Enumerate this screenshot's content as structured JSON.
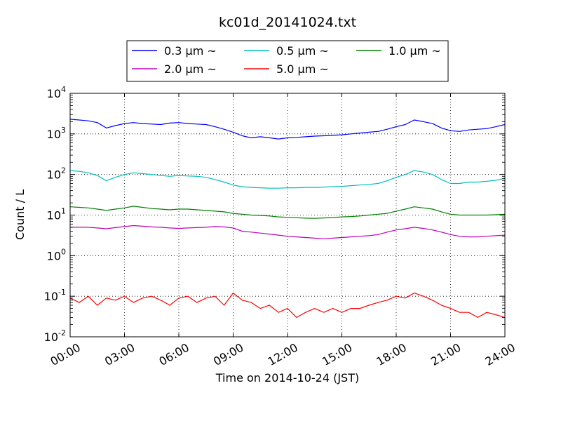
{
  "chart_data": {
    "type": "line",
    "title": "kc01d_20141024.txt",
    "xlabel": "Time on 2014-10-24 (JST)",
    "ylabel": "Count / L",
    "x_unit": "hours",
    "xlim": [
      0,
      24
    ],
    "ylim": [
      0.01,
      10000
    ],
    "yscale": "log",
    "grid": true,
    "legend_position": "top",
    "x_ticks": [
      "00:00",
      "03:00",
      "06:00",
      "09:00",
      "12:00",
      "15:00",
      "18:00",
      "21:00",
      "24:00"
    ],
    "y_ticks": [
      {
        "base": "10",
        "exp": "-2"
      },
      {
        "base": "10",
        "exp": "-1"
      },
      {
        "base": "10",
        "exp": "0"
      },
      {
        "base": "10",
        "exp": "1"
      },
      {
        "base": "10",
        "exp": "2"
      },
      {
        "base": "10",
        "exp": "3"
      },
      {
        "base": "10",
        "exp": "4"
      }
    ],
    "x": [
      0,
      0.5,
      1,
      1.5,
      2,
      2.5,
      3,
      3.5,
      4,
      4.5,
      5,
      5.5,
      6,
      6.5,
      7,
      7.5,
      8,
      8.5,
      9,
      9.5,
      10,
      10.5,
      11,
      11.5,
      12,
      12.5,
      13,
      13.5,
      14,
      14.5,
      15,
      15.5,
      16,
      16.5,
      17,
      17.5,
      18,
      18.5,
      19,
      19.5,
      20,
      20.5,
      21,
      21.5,
      22,
      22.5,
      23,
      23.5,
      24
    ],
    "series": [
      {
        "name": "0.3 μm ~",
        "color": "#0000ff",
        "values": [
          2300,
          2200,
          2100,
          1900,
          1400,
          1600,
          1800,
          1900,
          1800,
          1750,
          1700,
          1850,
          1900,
          1800,
          1750,
          1700,
          1500,
          1300,
          1100,
          900,
          800,
          850,
          800,
          750,
          800,
          820,
          850,
          880,
          900,
          920,
          950,
          1000,
          1050,
          1100,
          1150,
          1300,
          1500,
          1700,
          2200,
          2000,
          1800,
          1400,
          1200,
          1150,
          1250,
          1300,
          1350,
          1500,
          1700
        ]
      },
      {
        "name": "0.5 μm ~",
        "color": "#00bfbf",
        "values": [
          125,
          120,
          110,
          95,
          70,
          85,
          100,
          110,
          105,
          100,
          95,
          90,
          95,
          92,
          90,
          85,
          75,
          65,
          55,
          50,
          48,
          47,
          46,
          46,
          47,
          47,
          48,
          48,
          49,
          50,
          51,
          53,
          55,
          57,
          60,
          70,
          85,
          100,
          125,
          115,
          100,
          75,
          60,
          60,
          65,
          65,
          68,
          72,
          80
        ]
      },
      {
        "name": "1.0 μm ~",
        "color": "#008000",
        "values": [
          16,
          15.5,
          15,
          14,
          13,
          14,
          15,
          16.5,
          15.5,
          14.5,
          14,
          13.5,
          14,
          14,
          13.5,
          13,
          12.5,
          12,
          11,
          10.5,
          10,
          9.8,
          9.5,
          9,
          8.8,
          8.6,
          8.4,
          8.3,
          8.5,
          8.7,
          9,
          9.2,
          9.5,
          10,
          10.5,
          11,
          12.5,
          14,
          16,
          15,
          14,
          12,
          10.5,
          10,
          10,
          10,
          10,
          10.2,
          10.5
        ]
      },
      {
        "name": "2.0 μm ~",
        "color": "#bf00bf",
        "values": [
          5,
          5,
          5,
          4.8,
          4.6,
          4.9,
          5.2,
          5.5,
          5.3,
          5.1,
          5,
          4.8,
          4.7,
          4.8,
          4.9,
          5,
          5.2,
          5.1,
          4.8,
          4,
          3.8,
          3.6,
          3.4,
          3.2,
          3,
          2.9,
          2.8,
          2.7,
          2.6,
          2.7,
          2.8,
          2.9,
          3,
          3.1,
          3.3,
          3.8,
          4.3,
          4.6,
          5,
          4.7,
          4.3,
          3.8,
          3.3,
          3,
          2.9,
          2.9,
          3,
          3.1,
          3.2
        ]
      },
      {
        "name": "5.0 μm ~",
        "color": "#ff0000",
        "values": [
          0.09,
          0.07,
          0.1,
          0.06,
          0.09,
          0.08,
          0.1,
          0.07,
          0.09,
          0.1,
          0.08,
          0.06,
          0.09,
          0.1,
          0.07,
          0.09,
          0.1,
          0.06,
          0.12,
          0.08,
          0.07,
          0.05,
          0.06,
          0.04,
          0.05,
          0.03,
          0.04,
          0.05,
          0.04,
          0.05,
          0.04,
          0.05,
          0.05,
          0.06,
          0.07,
          0.08,
          0.1,
          0.09,
          0.12,
          0.1,
          0.08,
          0.06,
          0.05,
          0.04,
          0.04,
          0.03,
          0.04,
          0.035,
          0.03
        ]
      }
    ]
  }
}
